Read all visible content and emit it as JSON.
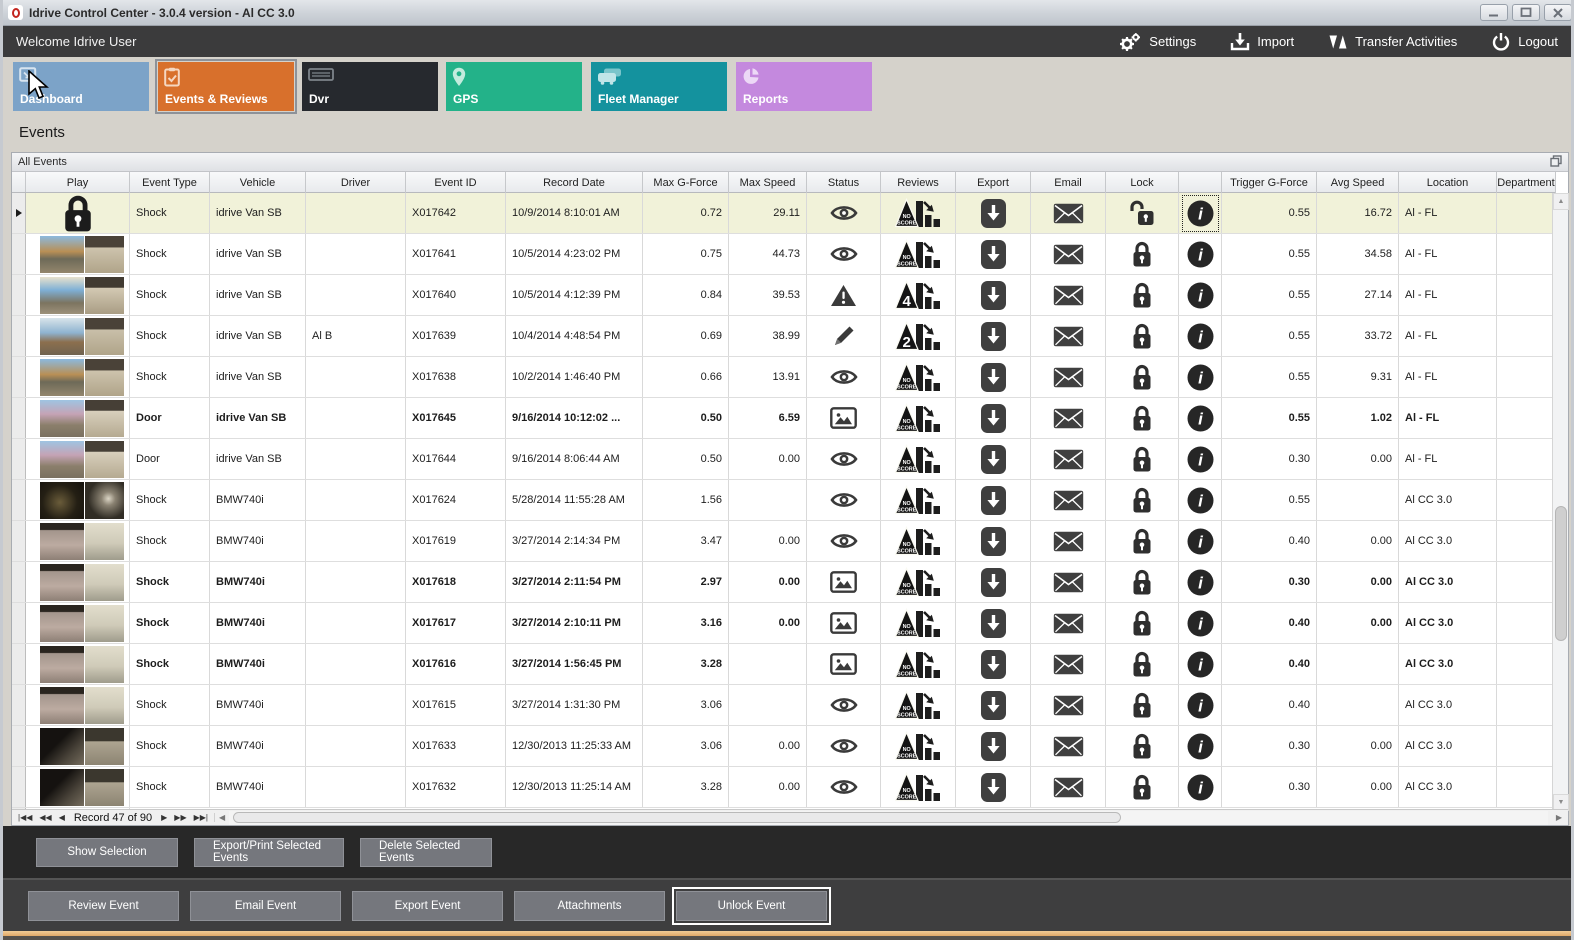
{
  "window": {
    "title": "Idrive Control Center - 3.0.4 version - Al CC 3.0"
  },
  "toolbar": {
    "welcome": "Welcome Idrive User",
    "actions": [
      {
        "label": "Settings",
        "icon": "gears-icon"
      },
      {
        "label": "Import",
        "icon": "import-icon"
      },
      {
        "label": "Transfer Activities",
        "icon": "transfer-icon"
      },
      {
        "label": "Logout",
        "icon": "power-icon"
      }
    ]
  },
  "tabs": [
    {
      "label": "Dashboard",
      "color": "#7ca3c8",
      "selected": false
    },
    {
      "label": "Events & Reviews",
      "color": "#d8702c",
      "selected": true
    },
    {
      "label": "Dvr",
      "color": "#26292e",
      "selected": false
    },
    {
      "label": "GPS",
      "color": "#23b289",
      "selected": false
    },
    {
      "label": "Fleet Manager",
      "color": "#14929e",
      "selected": false
    },
    {
      "label": "Reports",
      "color": "#c489de",
      "selected": false
    }
  ],
  "page": {
    "title": "Events",
    "panel_title": "All Events"
  },
  "grid": {
    "columns": [
      "Play",
      "Event Type",
      "Vehicle",
      "Driver",
      "Event ID",
      "Record Date",
      "Max G-Force",
      "Max Speed",
      "Status",
      "Reviews",
      "Export",
      "Email",
      "Lock",
      "",
      "Trigger G-Force",
      "Avg Speed",
      "Location",
      "Department"
    ],
    "rows": [
      {
        "play": "lock",
        "thumb": "",
        "event_type": "Shock",
        "vehicle": "idrive Van SB",
        "driver": "",
        "event_id": "X017642",
        "record_date": "10/9/2014 8:10:01 AM",
        "max_g": "0.72",
        "max_speed": "29.11",
        "status": "eye",
        "review": "NO SCORE",
        "lock": "unlocked",
        "trigger_g": "0.55",
        "avg_speed": "16.72",
        "location": "Al - FL",
        "bold": false,
        "selected": true,
        "info_focus": true
      },
      {
        "play": "thumb",
        "thumb": "t-road1",
        "event_type": "Shock",
        "vehicle": "idrive Van SB",
        "driver": "",
        "event_id": "X017641",
        "record_date": "10/5/2014 4:23:02 PM",
        "max_g": "0.75",
        "max_speed": "44.73",
        "status": "eye",
        "review": "NO SCORE",
        "lock": "locked",
        "trigger_g": "0.55",
        "avg_speed": "34.58",
        "location": "Al - FL",
        "bold": false,
        "selected": false,
        "info_focus": false
      },
      {
        "play": "thumb",
        "thumb": "t-road2",
        "event_type": "Shock",
        "vehicle": "idrive Van SB",
        "driver": "",
        "event_id": "X017640",
        "record_date": "10/5/2014 4:12:39 PM",
        "max_g": "0.84",
        "max_speed": "39.53",
        "status": "warning",
        "review": "4",
        "lock": "locked",
        "trigger_g": "0.55",
        "avg_speed": "27.14",
        "location": "Al - FL",
        "bold": false,
        "selected": false,
        "info_focus": false
      },
      {
        "play": "thumb",
        "thumb": "t-road3",
        "event_type": "Shock",
        "vehicle": "idrive Van SB",
        "driver": "Al B",
        "event_id": "X017639",
        "record_date": "10/4/2014 4:48:54 PM",
        "max_g": "0.69",
        "max_speed": "38.99",
        "status": "pencil",
        "review": "2",
        "lock": "locked",
        "trigger_g": "0.55",
        "avg_speed": "33.72",
        "location": "Al - FL",
        "bold": false,
        "selected": false,
        "info_focus": false
      },
      {
        "play": "thumb",
        "thumb": "t-road1",
        "event_type": "Shock",
        "vehicle": "idrive Van SB",
        "driver": "",
        "event_id": "X017638",
        "record_date": "10/2/2014 1:46:40 PM",
        "max_g": "0.66",
        "max_speed": "13.91",
        "status": "eye",
        "review": "NO SCORE",
        "lock": "locked",
        "trigger_g": "0.55",
        "avg_speed": "9.31",
        "location": "Al - FL",
        "bold": false,
        "selected": false,
        "info_focus": false
      },
      {
        "play": "thumb",
        "thumb": "t-blossom",
        "event_type": "Door",
        "vehicle": "idrive Van SB",
        "driver": "",
        "event_id": "X017645",
        "record_date": "9/16/2014 10:12:02 ...",
        "max_g": "0.50",
        "max_speed": "6.59",
        "status": "picture",
        "review": "NO SCORE",
        "lock": "locked",
        "trigger_g": "0.55",
        "avg_speed": "1.02",
        "location": "Al - FL",
        "bold": true,
        "selected": false,
        "info_focus": false
      },
      {
        "play": "thumb",
        "thumb": "t-blossom",
        "event_type": "Door",
        "vehicle": "idrive Van SB",
        "driver": "",
        "event_id": "X017644",
        "record_date": "9/16/2014 8:06:44 AM",
        "max_g": "0.50",
        "max_speed": "0.00",
        "status": "eye",
        "review": "NO SCORE",
        "lock": "locked",
        "trigger_g": "0.30",
        "avg_speed": "0.00",
        "location": "Al - FL",
        "bold": false,
        "selected": false,
        "info_focus": false
      },
      {
        "play": "thumb",
        "thumb": "t-night",
        "event_type": "Shock",
        "vehicle": "BMW740i",
        "driver": "",
        "event_id": "X017624",
        "record_date": "5/28/2014 11:55:28 AM",
        "max_g": "1.56",
        "max_speed": "",
        "status": "eye",
        "review": "NO SCORE",
        "lock": "locked",
        "trigger_g": "0.55",
        "avg_speed": "",
        "location": "Al CC 3.0",
        "bold": false,
        "selected": false,
        "info_focus": false
      },
      {
        "play": "thumb",
        "thumb": "t-grain",
        "event_type": "Shock",
        "vehicle": "BMW740i",
        "driver": "",
        "event_id": "X017619",
        "record_date": "3/27/2014 2:14:34 PM",
        "max_g": "3.47",
        "max_speed": "0.00",
        "status": "eye",
        "review": "NO SCORE",
        "lock": "locked",
        "trigger_g": "0.40",
        "avg_speed": "0.00",
        "location": "Al CC 3.0",
        "bold": false,
        "selected": false,
        "info_focus": false
      },
      {
        "play": "thumb",
        "thumb": "t-grain",
        "event_type": "Shock",
        "vehicle": "BMW740i",
        "driver": "",
        "event_id": "X017618",
        "record_date": "3/27/2014 2:11:54 PM",
        "max_g": "2.97",
        "max_speed": "0.00",
        "status": "picture",
        "review": "NO SCORE",
        "lock": "locked",
        "trigger_g": "0.30",
        "avg_speed": "0.00",
        "location": "Al CC 3.0",
        "bold": true,
        "selected": false,
        "info_focus": false
      },
      {
        "play": "thumb",
        "thumb": "t-grain",
        "event_type": "Shock",
        "vehicle": "BMW740i",
        "driver": "",
        "event_id": "X017617",
        "record_date": "3/27/2014 2:10:11 PM",
        "max_g": "3.16",
        "max_speed": "0.00",
        "status": "picture",
        "review": "NO SCORE",
        "lock": "locked",
        "trigger_g": "0.40",
        "avg_speed": "0.00",
        "location": "Al CC 3.0",
        "bold": true,
        "selected": false,
        "info_focus": false
      },
      {
        "play": "thumb",
        "thumb": "t-grain",
        "event_type": "Shock",
        "vehicle": "BMW740i",
        "driver": "",
        "event_id": "X017616",
        "record_date": "3/27/2014 1:56:45 PM",
        "max_g": "3.28",
        "max_speed": "",
        "status": "picture",
        "review": "NO SCORE",
        "lock": "locked",
        "trigger_g": "0.40",
        "avg_speed": "",
        "location": "Al CC 3.0",
        "bold": true,
        "selected": false,
        "info_focus": false
      },
      {
        "play": "thumb",
        "thumb": "t-grain",
        "event_type": "Shock",
        "vehicle": "BMW740i",
        "driver": "",
        "event_id": "X017615",
        "record_date": "3/27/2014 1:31:30 PM",
        "max_g": "3.06",
        "max_speed": "",
        "status": "eye",
        "review": "NO SCORE",
        "lock": "locked",
        "trigger_g": "0.40",
        "avg_speed": "",
        "location": "Al CC 3.0",
        "bold": false,
        "selected": false,
        "info_focus": false
      },
      {
        "play": "thumb",
        "thumb": "t-dark",
        "event_type": "Shock",
        "vehicle": "BMW740i",
        "driver": "",
        "event_id": "X017633",
        "record_date": "12/30/2013 11:25:33 AM",
        "max_g": "3.06",
        "max_speed": "0.00",
        "status": "eye",
        "review": "NO SCORE",
        "lock": "locked",
        "trigger_g": "0.30",
        "avg_speed": "0.00",
        "location": "Al CC 3.0",
        "bold": false,
        "selected": false,
        "info_focus": false
      },
      {
        "play": "thumb",
        "thumb": "t-dark",
        "event_type": "Shock",
        "vehicle": "BMW740i",
        "driver": "",
        "event_id": "X017632",
        "record_date": "12/30/2013 11:25:14 AM",
        "max_g": "3.28",
        "max_speed": "0.00",
        "status": "eye",
        "review": "NO SCORE",
        "lock": "locked",
        "trigger_g": "0.30",
        "avg_speed": "0.00",
        "location": "Al CC 3.0",
        "bold": false,
        "selected": false,
        "info_focus": false
      }
    ]
  },
  "navigator": {
    "record_text": "Record 47 of 90"
  },
  "selection_actions": [
    "Show Selection",
    "Export/Print Selected Events",
    "Delete Selected  Events"
  ],
  "event_actions": [
    "Review Event",
    "Email Event",
    "Export Event",
    "Attachments",
    "Unlock Event"
  ],
  "colors": {
    "shock_text": "#e4705c",
    "door_text": "#3f93d2",
    "selected_row": "#f1f2d9",
    "accent_orange": "#d8702c"
  }
}
